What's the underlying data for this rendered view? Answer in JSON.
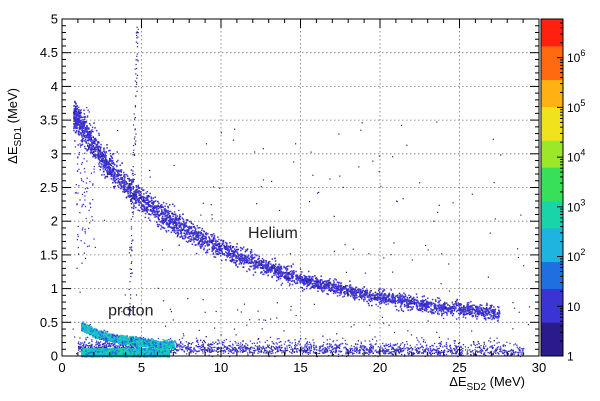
{
  "chart_data": {
    "type": "heatmap",
    "title": "",
    "xlabel": {
      "symbol": "ΔE",
      "sub": "SD2",
      "unit": " (MeV)"
    },
    "ylabel": {
      "symbol": "ΔE",
      "sub": "SD1",
      "unit": " (MeV)"
    },
    "xlim": [
      0,
      30
    ],
    "ylim": [
      0,
      5
    ],
    "x_ticks": [
      0,
      5,
      10,
      15,
      20,
      25,
      30
    ],
    "y_ticks": [
      0,
      0.5,
      1,
      1.5,
      2,
      2.5,
      3,
      3.5,
      4,
      4.5,
      5
    ],
    "x_tick_labels": [
      "0",
      "5",
      "10",
      "15",
      "20",
      "25",
      "30"
    ],
    "y_tick_labels": [
      "0",
      "0.5",
      "1",
      "1.5",
      "2",
      "2.5",
      "3",
      "3.5",
      "4",
      "4.5",
      "5"
    ],
    "grid": true,
    "colorbar": {
      "scale": "log",
      "range": [
        1,
        6000000
      ],
      "ticks": [
        {
          "value": 1,
          "label": "1"
        },
        {
          "value": 10,
          "label": "10"
        },
        {
          "value": 100,
          "label": "10",
          "sup": "2"
        },
        {
          "value": 1000,
          "label": "10",
          "sup": "3"
        },
        {
          "value": 10000,
          "label": "10",
          "sup": "4"
        },
        {
          "value": 100000,
          "label": "10",
          "sup": "5"
        },
        {
          "value": 1000000,
          "label": "10",
          "sup": "6"
        }
      ]
    },
    "annotations": [
      {
        "text": "Helium",
        "x": 11.7,
        "y": 1.75
      },
      {
        "text": "proton",
        "x": 2.9,
        "y": 0.6
      }
    ],
    "bands": [
      {
        "name": "Helium",
        "points": [
          [
            0.7,
            3.6
          ],
          [
            2,
            3.1
          ],
          [
            3,
            2.8
          ],
          [
            5,
            2.3
          ],
          [
            7.5,
            1.9
          ],
          [
            10,
            1.6
          ],
          [
            12.5,
            1.35
          ],
          [
            15,
            1.15
          ],
          [
            17.5,
            1.0
          ],
          [
            20,
            0.88
          ],
          [
            22.5,
            0.78
          ],
          [
            25,
            0.7
          ],
          [
            27.5,
            0.63
          ]
        ]
      },
      {
        "name": "proton",
        "points": [
          [
            1.2,
            0.45
          ],
          [
            2,
            0.35
          ],
          [
            3,
            0.28
          ],
          [
            4,
            0.24
          ],
          [
            5,
            0.21
          ],
          [
            6,
            0.19
          ],
          [
            7,
            0.17
          ]
        ]
      }
    ],
    "palette": [
      "#2a1a8c",
      "#3b34d4",
      "#1f6fe0",
      "#1fb3e0",
      "#18d4a8",
      "#38e05a",
      "#9be82a",
      "#f0e21c",
      "#ffb114",
      "#ff6a10",
      "#ff2010"
    ]
  }
}
